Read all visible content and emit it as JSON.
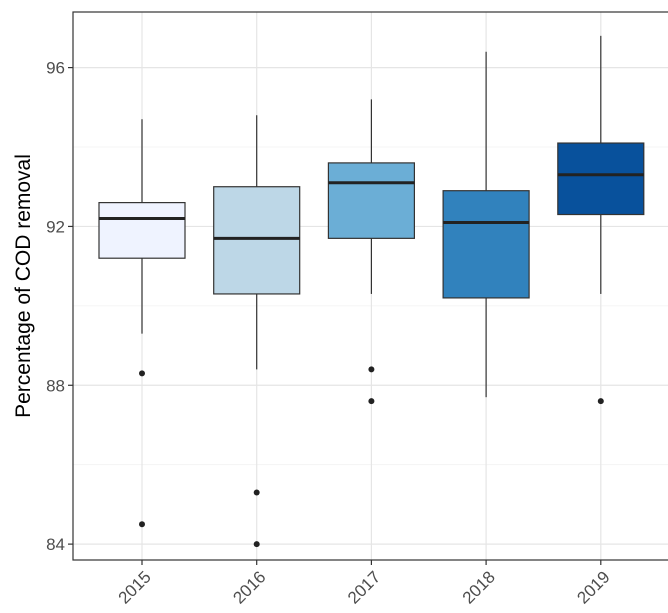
{
  "chart_data": {
    "type": "box",
    "ylabel": "Percentage of COD removal",
    "xlabel": "",
    "ylim": [
      83.6,
      97.4
    ],
    "yticks": [
      84,
      88,
      92,
      96
    ],
    "ytick_labels": [
      "84",
      "88",
      "92",
      "96"
    ],
    "grid": true,
    "legend": "none",
    "categories": [
      "2015",
      "2016",
      "2017",
      "2018",
      "2019"
    ],
    "boxes": [
      {
        "category": "2015",
        "min": 89.3,
        "q1": 91.2,
        "median": 92.2,
        "q3": 92.6,
        "max": 94.7,
        "outliers": [
          88.3,
          84.5
        ],
        "color": "#eff3ff"
      },
      {
        "category": "2016",
        "min": 88.4,
        "q1": 90.3,
        "median": 91.7,
        "q3": 93.0,
        "max": 94.8,
        "outliers": [
          85.3,
          84.0
        ],
        "color": "#bdd7e7"
      },
      {
        "category": "2017",
        "min": 90.3,
        "q1": 91.7,
        "median": 93.1,
        "q3": 93.6,
        "max": 95.2,
        "outliers": [
          88.4,
          87.6
        ],
        "color": "#6baed6"
      },
      {
        "category": "2018",
        "min": 87.7,
        "q1": 90.2,
        "median": 92.1,
        "q3": 92.9,
        "max": 96.4,
        "outliers": [],
        "color": "#3182bd"
      },
      {
        "category": "2019",
        "min": 90.3,
        "q1": 92.3,
        "median": 93.3,
        "q3": 94.1,
        "max": 96.8,
        "outliers": [
          87.6
        ],
        "color": "#08519c"
      }
    ]
  }
}
